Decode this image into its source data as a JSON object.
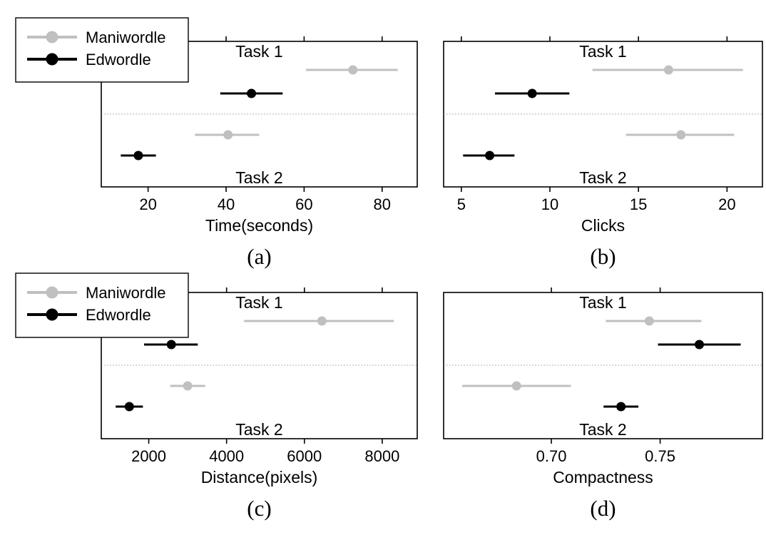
{
  "legend": {
    "entries": [
      {
        "label": "Maniwordle",
        "color": "#c0c0c0"
      },
      {
        "label": "Edwordle",
        "color": "#000000"
      }
    ]
  },
  "chart_data": [
    {
      "type": "scatter",
      "panel_label": "(a)",
      "xlabel": "Time(seconds)",
      "ticks": [
        20,
        40,
        60,
        80
      ],
      "xlim": [
        8,
        89
      ],
      "grid": false,
      "legend_position": "top-left",
      "groups": [
        {
          "name": "Task 1",
          "series": [
            {
              "name": "Maniwordle",
              "mean": 72.5,
              "lo": 60.5,
              "hi": 84
            },
            {
              "name": "Edwordle",
              "mean": 46.5,
              "lo": 38.5,
              "hi": 54.5
            }
          ]
        },
        {
          "name": "Task 2",
          "series": [
            {
              "name": "Maniwordle",
              "mean": 40.5,
              "lo": 32,
              "hi": 48.5
            },
            {
              "name": "Edwordle",
              "mean": 17.5,
              "lo": 13,
              "hi": 22
            }
          ]
        }
      ]
    },
    {
      "type": "scatter",
      "panel_label": "(b)",
      "xlabel": "Clicks",
      "ticks": [
        5,
        10,
        15,
        20
      ],
      "xlim": [
        4,
        22
      ],
      "grid": false,
      "groups": [
        {
          "name": "Task 1",
          "series": [
            {
              "name": "Maniwordle",
              "mean": 16.7,
              "lo": 12.4,
              "hi": 20.9
            },
            {
              "name": "Edwordle",
              "mean": 9.0,
              "lo": 6.9,
              "hi": 11.1
            }
          ]
        },
        {
          "name": "Task 2",
          "series": [
            {
              "name": "Maniwordle",
              "mean": 17.4,
              "lo": 14.3,
              "hi": 20.4
            },
            {
              "name": "Edwordle",
              "mean": 6.6,
              "lo": 5.1,
              "hi": 8.0
            }
          ]
        }
      ]
    },
    {
      "type": "scatter",
      "panel_label": "(c)",
      "xlabel": "Distance(pixels)",
      "ticks": [
        2000,
        4000,
        6000,
        8000
      ],
      "xlim": [
        780,
        8900
      ],
      "grid": false,
      "legend_position": "top-left",
      "groups": [
        {
          "name": "Task 1",
          "series": [
            {
              "name": "Maniwordle",
              "mean": 6450,
              "lo": 4450,
              "hi": 8300
            },
            {
              "name": "Edwordle",
              "mean": 2580,
              "lo": 1880,
              "hi": 3260
            }
          ]
        },
        {
          "name": "Task 2",
          "series": [
            {
              "name": "Maniwordle",
              "mean": 3000,
              "lo": 2550,
              "hi": 3450
            },
            {
              "name": "Edwordle",
              "mean": 1500,
              "lo": 1150,
              "hi": 1850
            }
          ]
        }
      ]
    },
    {
      "type": "scatter",
      "panel_label": "(d)",
      "xlabel": "Compactness",
      "ticks": [
        0.7,
        0.75
      ],
      "tick_labels": [
        "0.70",
        "0.75"
      ],
      "xlim": [
        0.6505,
        0.797
      ],
      "grid": false,
      "groups": [
        {
          "name": "Task 1",
          "series": [
            {
              "name": "Maniwordle",
              "mean": 0.745,
              "lo": 0.725,
              "hi": 0.769
            },
            {
              "name": "Edwordle",
              "mean": 0.768,
              "lo": 0.749,
              "hi": 0.787
            }
          ]
        },
        {
          "name": "Task 2",
          "series": [
            {
              "name": "Maniwordle",
              "mean": 0.684,
              "lo": 0.659,
              "hi": 0.709
            },
            {
              "name": "Edwordle",
              "mean": 0.732,
              "lo": 0.724,
              "hi": 0.74
            }
          ]
        }
      ]
    }
  ]
}
